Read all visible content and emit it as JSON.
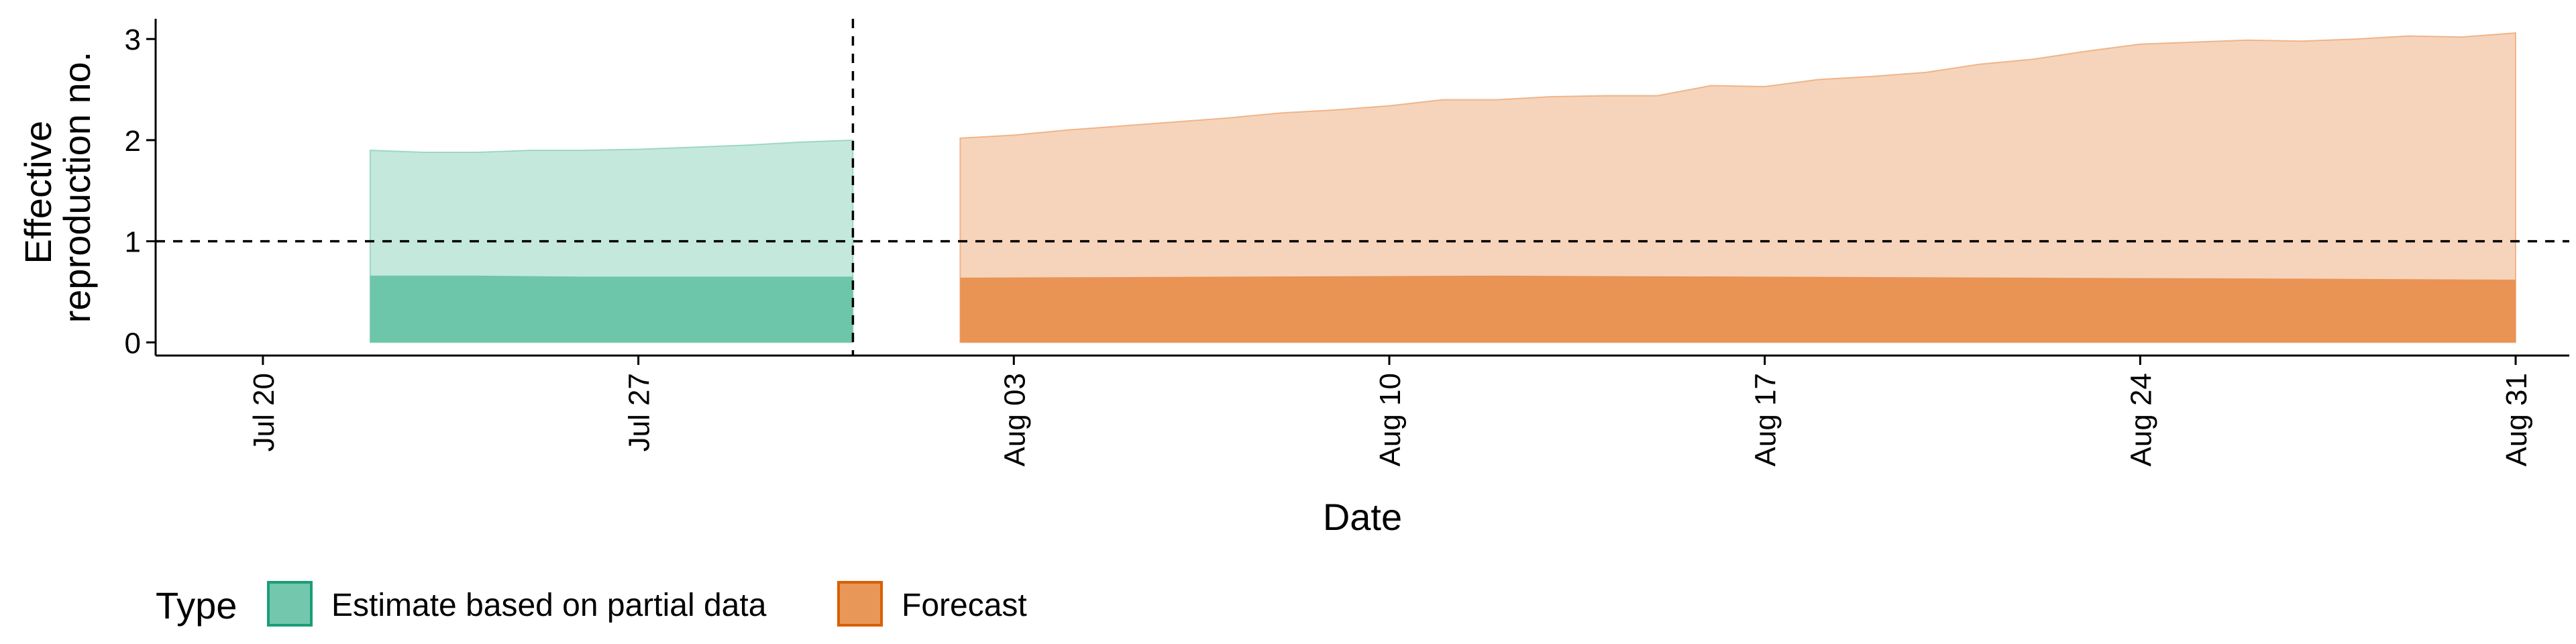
{
  "chart_data": {
    "type": "area",
    "title": "",
    "xlabel": "Date",
    "ylabel_lines": [
      "Effective",
      "reproduction no."
    ],
    "x_ticks": [
      "Jul 20",
      "Jul 27",
      "Aug 03",
      "Aug 10",
      "Aug 17",
      "Aug 24",
      "Aug 31"
    ],
    "x_tick_dates": [
      "2020-07-20",
      "2020-07-27",
      "2020-08-03",
      "2020-08-10",
      "2020-08-17",
      "2020-08-24",
      "2020-08-31"
    ],
    "xlim": [
      "2020-07-18",
      "2020-09-01"
    ],
    "y_ticks": [
      0,
      1,
      2,
      3
    ],
    "ylim": [
      -0.13,
      3.2
    ],
    "reference_line_y": 1,
    "vline_date": "2020-07-31",
    "legend_title": "Type",
    "legend_position": "bottom-left",
    "grid": false,
    "series": [
      {
        "name": "Estimate based on partial data",
        "color": "#66c2a5",
        "outer": [
          [
            "2020-07-22",
            0.0,
            1.9
          ],
          [
            "2020-07-23",
            0.0,
            1.88
          ],
          [
            "2020-07-24",
            0.0,
            1.88
          ],
          [
            "2020-07-25",
            0.0,
            1.9
          ],
          [
            "2020-07-26",
            0.0,
            1.9
          ],
          [
            "2020-07-27",
            0.0,
            1.91
          ],
          [
            "2020-07-28",
            0.0,
            1.93
          ],
          [
            "2020-07-29",
            0.0,
            1.95
          ],
          [
            "2020-07-30",
            0.0,
            1.98
          ],
          [
            "2020-07-31",
            0.0,
            2.0
          ]
        ],
        "inner": [
          [
            "2020-07-22",
            0.0,
            0.66
          ],
          [
            "2020-07-24",
            0.0,
            0.66
          ],
          [
            "2020-07-26",
            0.0,
            0.65
          ],
          [
            "2020-07-28",
            0.0,
            0.65
          ],
          [
            "2020-07-31",
            0.0,
            0.65
          ]
        ]
      },
      {
        "name": "Forecast",
        "color": "#e78d4b",
        "outer": [
          [
            "2020-08-02",
            0.0,
            2.02
          ],
          [
            "2020-08-03",
            0.0,
            2.05
          ],
          [
            "2020-08-04",
            0.0,
            2.1
          ],
          [
            "2020-08-05",
            0.0,
            2.14
          ],
          [
            "2020-08-06",
            0.0,
            2.18
          ],
          [
            "2020-08-07",
            0.0,
            2.22
          ],
          [
            "2020-08-08",
            0.0,
            2.27
          ],
          [
            "2020-08-09",
            0.0,
            2.3
          ],
          [
            "2020-08-10",
            0.0,
            2.34
          ],
          [
            "2020-08-11",
            0.0,
            2.4
          ],
          [
            "2020-08-12",
            0.0,
            2.4
          ],
          [
            "2020-08-13",
            0.0,
            2.43
          ],
          [
            "2020-08-14",
            0.0,
            2.44
          ],
          [
            "2020-08-15",
            0.0,
            2.44
          ],
          [
            "2020-08-16",
            0.0,
            2.54
          ],
          [
            "2020-08-17",
            0.0,
            2.53
          ],
          [
            "2020-08-18",
            0.0,
            2.6
          ],
          [
            "2020-08-19",
            0.0,
            2.63
          ],
          [
            "2020-08-20",
            0.0,
            2.67
          ],
          [
            "2020-08-21",
            0.0,
            2.75
          ],
          [
            "2020-08-22",
            0.0,
            2.8
          ],
          [
            "2020-08-23",
            0.0,
            2.88
          ],
          [
            "2020-08-24",
            0.0,
            2.95
          ],
          [
            "2020-08-25",
            0.0,
            2.97
          ],
          [
            "2020-08-26",
            0.0,
            2.99
          ],
          [
            "2020-08-27",
            0.0,
            2.98
          ],
          [
            "2020-08-28",
            0.0,
            3.0
          ],
          [
            "2020-08-29",
            0.0,
            3.03
          ],
          [
            "2020-08-30",
            0.0,
            3.02
          ],
          [
            "2020-08-31",
            0.0,
            3.06
          ]
        ],
        "inner": [
          [
            "2020-08-02",
            0.0,
            0.64
          ],
          [
            "2020-08-07",
            0.0,
            0.65
          ],
          [
            "2020-08-12",
            0.0,
            0.66
          ],
          [
            "2020-08-17",
            0.0,
            0.65
          ],
          [
            "2020-08-22",
            0.0,
            0.64
          ],
          [
            "2020-08-27",
            0.0,
            0.63
          ],
          [
            "2020-08-31",
            0.0,
            0.62
          ]
        ]
      }
    ]
  }
}
